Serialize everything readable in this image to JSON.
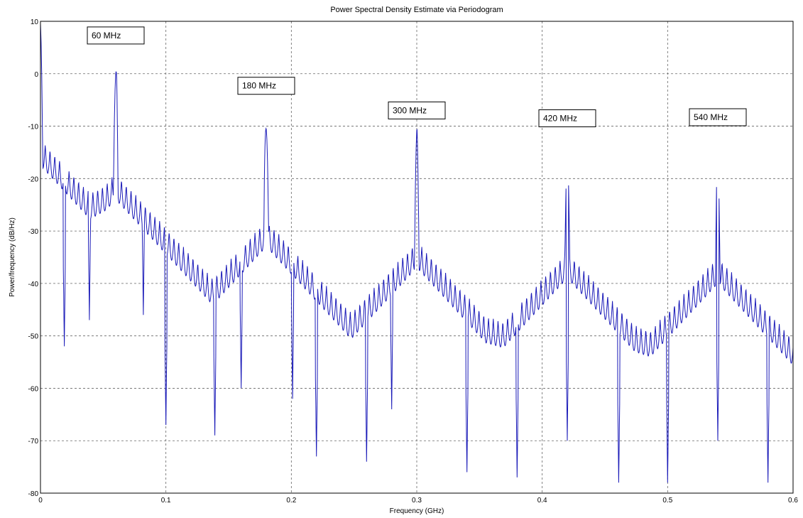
{
  "chart_data": {
    "type": "line",
    "title": "Power Spectral Density Estimate via Periodogram",
    "xlabel": "Frequency (GHz)",
    "ylabel": "Power/frequency (dB/Hz)",
    "xlim": [
      0,
      0.6
    ],
    "ylim": [
      -80,
      10
    ],
    "x_ticks": [
      0,
      0.1,
      0.2,
      0.3,
      0.4,
      0.5,
      0.6
    ],
    "x_tick_labels": [
      "0",
      "0.1",
      "0.2",
      "0.3",
      "0.4",
      "0.5",
      "0.6"
    ],
    "y_ticks": [
      10,
      0,
      -10,
      -20,
      -30,
      -40,
      -50,
      -60,
      -70,
      -80
    ],
    "y_tick_labels": [
      "10",
      "0",
      "-10",
      "-20",
      "-30",
      "-40",
      "-50",
      "-60",
      "-70",
      "-80"
    ],
    "grid": true,
    "peaks": [
      {
        "x": 0.0,
        "y": 9.5
      },
      {
        "x": 0.06,
        "y": 3.0
      },
      {
        "x": 0.18,
        "y": -6.0
      },
      {
        "x": 0.3,
        "y": -10.0
      },
      {
        "x": 0.42,
        "y": -12.0
      },
      {
        "x": 0.54,
        "y": -13.0
      }
    ],
    "annotations": [
      {
        "text": "60 MHz",
        "x": 0.06,
        "y": 7.3
      },
      {
        "text": "180 MHz",
        "x": 0.18,
        "y": -2.3
      },
      {
        "text": "300 MHz",
        "x": 0.3,
        "y": -7.0
      },
      {
        "text": "420 MHz",
        "x": 0.42,
        "y": -8.5
      },
      {
        "text": "540 MHz",
        "x": 0.54,
        "y": -8.3
      }
    ],
    "floor_nodes": [
      {
        "x": 0.0,
        "y": -20
      },
      {
        "x": 0.03,
        "y": -24
      },
      {
        "x": 0.06,
        "y": -20
      },
      {
        "x": 0.09,
        "y": -33
      },
      {
        "x": 0.12,
        "y": -40
      },
      {
        "x": 0.15,
        "y": -38
      },
      {
        "x": 0.18,
        "y": -33
      },
      {
        "x": 0.21,
        "y": -43
      },
      {
        "x": 0.25,
        "y": -46
      },
      {
        "x": 0.3,
        "y": -35
      },
      {
        "x": 0.35,
        "y": -46
      },
      {
        "x": 0.38,
        "y": -48
      },
      {
        "x": 0.42,
        "y": -39
      },
      {
        "x": 0.46,
        "y": -47
      },
      {
        "x": 0.5,
        "y": -50
      },
      {
        "x": 0.54,
        "y": -40
      },
      {
        "x": 0.58,
        "y": -48
      },
      {
        "x": 0.6,
        "y": -51
      }
    ],
    "notches": [
      {
        "x": 0.019,
        "y": -52
      },
      {
        "x": 0.039,
        "y": -47
      },
      {
        "x": 0.082,
        "y": -46
      },
      {
        "x": 0.1,
        "y": -67
      },
      {
        "x": 0.139,
        "y": -69
      },
      {
        "x": 0.16,
        "y": -60
      },
      {
        "x": 0.201,
        "y": -62
      },
      {
        "x": 0.22,
        "y": -73
      },
      {
        "x": 0.26,
        "y": -74
      },
      {
        "x": 0.28,
        "y": -64
      },
      {
        "x": 0.34,
        "y": -76
      },
      {
        "x": 0.38,
        "y": -77
      },
      {
        "x": 0.42,
        "y": -70
      },
      {
        "x": 0.461,
        "y": -78
      },
      {
        "x": 0.5,
        "y": -78
      },
      {
        "x": 0.54,
        "y": -70
      },
      {
        "x": 0.58,
        "y": -78
      }
    ],
    "series": [
      {
        "values_note": ""
      }
    ]
  }
}
